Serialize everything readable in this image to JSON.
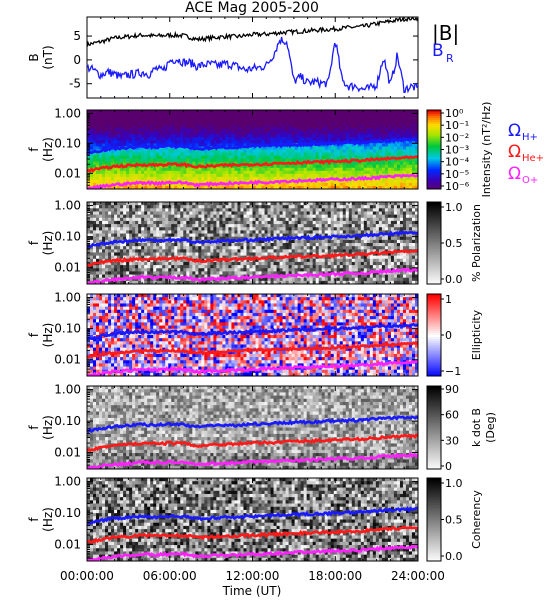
{
  "chart_data": {
    "type": "multi-panel spectrogram",
    "title": "ACE Mag 2005-200",
    "xlabel": "Time (UT)",
    "x_ticks": [
      "00:00:00",
      "06:00:00",
      "12:00:00",
      "18:00:00",
      "24:00:00"
    ],
    "xlim_hours": [
      0,
      24
    ],
    "panels": [
      {
        "id": "field",
        "type": "line",
        "ylabel": "B",
        "yunit": "(nT)",
        "y_ticks": [
          "5",
          "0",
          "-5"
        ],
        "ylim": [
          -8,
          9
        ],
        "legend": [
          {
            "label": "|B|",
            "color": "#000000"
          },
          {
            "label": "B",
            "sub": "R",
            "color": "#1a1aff"
          }
        ],
        "series": [
          {
            "key": "|B|",
            "color": "#000000",
            "x_hours": [
              0,
              1,
              2,
              3,
              4,
              5,
              6,
              7,
              8,
              9,
              10,
              11,
              12,
              13,
              14,
              15,
              16,
              17,
              18,
              19,
              20,
              21,
              22,
              23,
              24
            ],
            "values": [
              3.2,
              3.8,
              4.6,
              4.9,
              5.2,
              5.0,
              5.2,
              5.1,
              4.3,
              4.6,
              4.9,
              4.9,
              5.3,
              5.4,
              5.7,
              5.9,
              6.1,
              6.3,
              6.5,
              6.8,
              7.0,
              7.6,
              8.1,
              8.6,
              8.8
            ]
          },
          {
            "key": "B_R",
            "color": "#1a1aff",
            "x_hours": [
              0,
              0.5,
              1,
              1.5,
              2,
              2.5,
              3,
              3.5,
              4,
              4.5,
              5,
              5.5,
              6,
              6.5,
              7,
              7.5,
              8,
              8.5,
              9,
              9.5,
              10,
              10.5,
              11,
              11.5,
              12,
              12.5,
              13,
              13.5,
              14,
              14.5,
              15,
              15.5,
              16,
              16.5,
              17,
              17.5,
              18,
              18.5,
              19,
              19.5,
              20,
              20.5,
              21,
              21.5,
              22,
              22.5,
              23,
              23.5,
              24
            ],
            "values": [
              -1.5,
              -2.2,
              -3.2,
              -2.5,
              -3.0,
              -3.6,
              -3.1,
              -3.0,
              -2.6,
              -3.0,
              -1.8,
              -2.4,
              -0.2,
              0.2,
              -0.5,
              -0.6,
              -1.4,
              -1.0,
              -0.9,
              -1.2,
              -0.8,
              -1.0,
              -1.5,
              -2.1,
              -1.8,
              -1.6,
              -1.2,
              1.0,
              4.3,
              3.8,
              -4.5,
              -3.6,
              -4.8,
              -4.6,
              -4.9,
              -4.9,
              4.3,
              -4.4,
              -5.6,
              -5.4,
              -6.2,
              -6.0,
              -5.2,
              0.6,
              -5.4,
              1.0,
              -6.2,
              -5.6,
              -6.0
            ]
          }
        ]
      },
      {
        "id": "intensity",
        "type": "spectrogram",
        "colormap": "rainbow",
        "ylabel": "f",
        "yunit": "(Hz)",
        "y_ticks": [
          "1.00",
          "0.10",
          "0.01"
        ],
        "colorbar_label": "Intensity (nT²/Hz)",
        "colorbar_ticks": [
          "10⁰",
          "10⁻¹",
          "10⁻²",
          "10⁻³",
          "10⁻⁴",
          "10⁻⁵",
          "10⁻⁶"
        ],
        "legend": [
          {
            "label": "Ω",
            "sub": "H+",
            "color": "#1a1aff"
          },
          {
            "label": "Ω",
            "sub": "He+",
            "color": "#ff1a1a"
          },
          {
            "label": "Ω",
            "sub": "O+",
            "color": "#ff22ff"
          }
        ]
      },
      {
        "id": "polarization",
        "type": "spectrogram",
        "colormap": "grayscale",
        "ylabel": "f",
        "yunit": "(Hz)",
        "y_ticks": [
          "1.00",
          "0.10",
          "0.01"
        ],
        "colorbar_label": "% Polarization",
        "colorbar_ticks": [
          "1.0",
          "0.5",
          "0.0"
        ]
      },
      {
        "id": "ellipticity",
        "type": "spectrogram",
        "colormap": "blue-white-red",
        "ylabel": "f",
        "yunit": "(Hz)",
        "y_ticks": [
          "1.00",
          "0.10",
          "0.01"
        ],
        "colorbar_label": "Ellipticity",
        "colorbar_ticks": [
          "1",
          "0",
          "−1"
        ]
      },
      {
        "id": "kdotb",
        "type": "spectrogram",
        "colormap": "grayscale",
        "ylabel": "f",
        "yunit": "(Hz)",
        "y_ticks": [
          "1.00",
          "0.10",
          "0.01"
        ],
        "colorbar_label": "k dot B",
        "colorbar_unit": "(Deg)",
        "colorbar_ticks": [
          "90",
          "60",
          "30",
          "0"
        ]
      },
      {
        "id": "coherency",
        "type": "spectrogram",
        "colormap": "grayscale",
        "ylabel": "f",
        "yunit": "(Hz)",
        "y_ticks": [
          "1.00",
          "0.10",
          "0.01"
        ],
        "colorbar_label": "Coherency",
        "colorbar_ticks": [
          "1.0",
          "0.5",
          "0.0"
        ]
      }
    ],
    "gyrofrequency_lines_hz": {
      "x_hours": [
        0,
        1,
        2,
        3,
        4,
        5,
        6,
        7,
        8,
        9,
        10,
        11,
        12,
        13,
        14,
        15,
        16,
        17,
        18,
        19,
        20,
        21,
        22,
        23,
        24
      ],
      "H+": {
        "color": "#1a1aff",
        "values": [
          0.048,
          0.058,
          0.068,
          0.072,
          0.078,
          0.075,
          0.08,
          0.078,
          0.065,
          0.07,
          0.074,
          0.075,
          0.08,
          0.082,
          0.087,
          0.09,
          0.093,
          0.096,
          0.1,
          0.104,
          0.107,
          0.116,
          0.124,
          0.131,
          0.134
        ]
      },
      "He+": {
        "color": "#ff1a1a",
        "values": [
          0.012,
          0.0145,
          0.017,
          0.018,
          0.0195,
          0.019,
          0.02,
          0.0195,
          0.0165,
          0.0175,
          0.0185,
          0.019,
          0.02,
          0.0205,
          0.0218,
          0.0225,
          0.0233,
          0.024,
          0.025,
          0.026,
          0.027,
          0.029,
          0.031,
          0.033,
          0.0335
        ]
      },
      "O+": {
        "color": "#ff22ff",
        "values": [
          0.003,
          0.0036,
          0.0042,
          0.0045,
          0.0049,
          0.0047,
          0.005,
          0.0049,
          0.0041,
          0.0044,
          0.0046,
          0.0047,
          0.005,
          0.0051,
          0.0054,
          0.0056,
          0.0058,
          0.006,
          0.0063,
          0.0065,
          0.0067,
          0.0073,
          0.0078,
          0.0082,
          0.0084
        ]
      }
    }
  }
}
